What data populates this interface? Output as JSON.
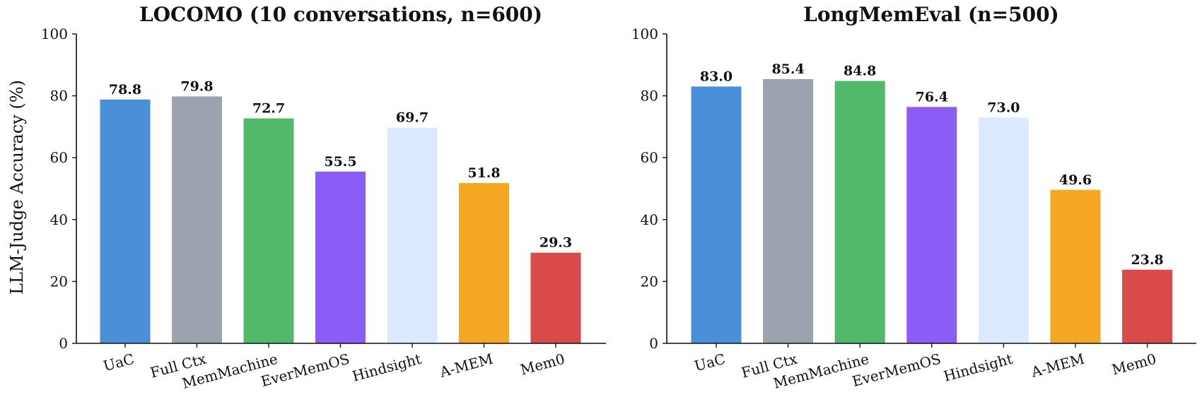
{
  "chart_data": [
    {
      "type": "bar",
      "title": "LOCOMO (10 conversations, n=600)",
      "ylabel": "LLM-Judge Accuracy (%)",
      "xlabel": "",
      "ylim": [
        0,
        100
      ],
      "yticks": [
        0,
        20,
        40,
        60,
        80,
        100
      ],
      "categories": [
        "UaC",
        "Full Ctx",
        "MemMachine",
        "EverMemOS",
        "Hindsight",
        "A-MEM",
        "Mem0"
      ],
      "values": [
        78.8,
        79.8,
        72.7,
        55.5,
        69.7,
        51.8,
        29.3
      ],
      "value_labels": [
        "78.8",
        "79.8",
        "72.7",
        "55.5",
        "69.7",
        "51.8",
        "29.3"
      ],
      "colors": [
        "#4a90d9",
        "#9ca3af",
        "#52b96a",
        "#8b5cf6",
        "#dbeafe",
        "#f5a623",
        "#d94a4a"
      ],
      "grid": false
    },
    {
      "type": "bar",
      "title": "LongMemEval (n=500)",
      "ylabel": "",
      "xlabel": "",
      "ylim": [
        0,
        100
      ],
      "yticks": [
        0,
        20,
        40,
        60,
        80,
        100
      ],
      "categories": [
        "UaC",
        "Full Ctx",
        "MemMachine",
        "EverMemOS",
        "Hindsight",
        "A-MEM",
        "Mem0"
      ],
      "values": [
        83.0,
        85.4,
        84.8,
        76.4,
        73.0,
        49.6,
        23.8
      ],
      "value_labels": [
        "83.0",
        "85.4",
        "84.8",
        "76.4",
        "73.0",
        "49.6",
        "23.8"
      ],
      "colors": [
        "#4a90d9",
        "#9ca3af",
        "#52b96a",
        "#8b5cf6",
        "#dbeafe",
        "#f5a623",
        "#d94a4a"
      ],
      "grid": false
    }
  ]
}
